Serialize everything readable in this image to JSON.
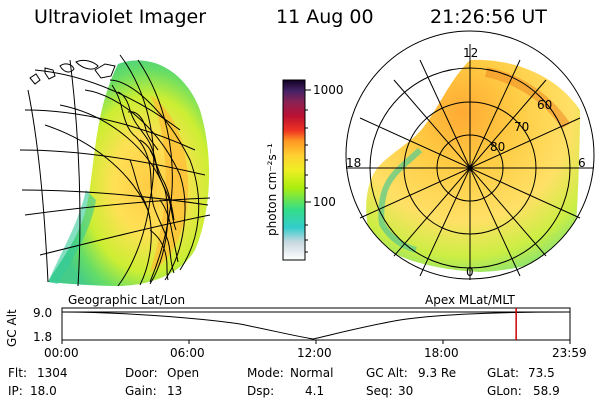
{
  "header": {
    "title": "Ultraviolet Imager",
    "date": "11 Aug 00",
    "time": "21:26:56 UT"
  },
  "colorbar": {
    "unit_label": "photon cm⁻²s⁻¹",
    "ticks": [
      "1000",
      "100"
    ]
  },
  "polar_plot": {
    "mlt_labels": [
      "12",
      "18",
      "6",
      "0"
    ],
    "lat_labels": [
      "60",
      "70",
      "80"
    ]
  },
  "timeline": {
    "left_caption": "Geographic Lat/Lon",
    "right_caption": "Apex MLat/MLT",
    "y_axis_label": "GC Alt",
    "y_ticks": [
      "9.0",
      "1.8"
    ],
    "x_ticks": [
      "00:00",
      "06:00",
      "12:00",
      "18:00",
      "23:59"
    ],
    "current_time_fraction": 0.894
  },
  "info": {
    "flt_label": "Flt:",
    "flt_value": "1304",
    "ip_label": "IP:",
    "ip_value": "18.0",
    "door_label": "Door:",
    "door_value": "Open",
    "gain_label": "Gain:",
    "gain_value": "13",
    "mode_label": "Mode:",
    "mode_value": "Normal",
    "dsp_label": "Dsp:",
    "dsp_value": "4.1",
    "gcalt_label": "GC Alt:",
    "gcalt_value": "9.3 Re",
    "seq_label": "Seq:",
    "seq_value": "30",
    "glat_label": "GLat:",
    "glat_value": "73.5",
    "glon_label": "GLon:",
    "glon_value": "58.9"
  }
}
